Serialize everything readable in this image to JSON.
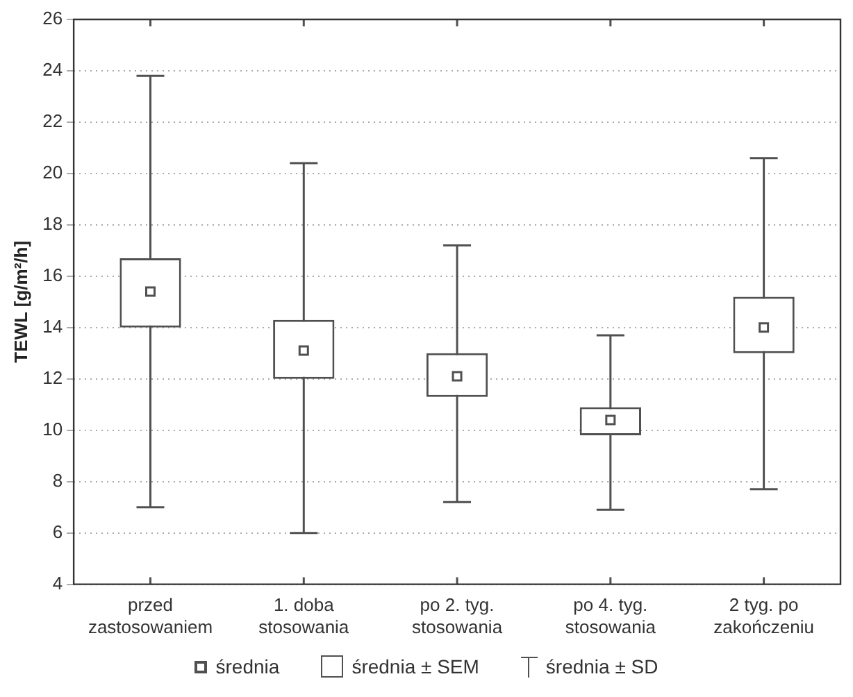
{
  "chart_data": {
    "type": "box",
    "ylabel": "TEWL [g/m²/h]",
    "categories": [
      "przed zastosowaniem",
      "1. doba stosowania",
      "po 2. tyg. stosowania",
      "po 4. tyg. stosowania",
      "2 tyg. po zakończeniu"
    ],
    "boxes": [
      {
        "low": 7.0,
        "q1": 14.0,
        "median": 15.4,
        "q3": 16.7,
        "high": 23.8
      },
      {
        "low": 6.0,
        "q1": 12.0,
        "median": 13.1,
        "q3": 14.3,
        "high": 20.4
      },
      {
        "low": 7.2,
        "q1": 11.3,
        "median": 12.1,
        "q3": 13.0,
        "high": 17.2
      },
      {
        "low": 6.9,
        "q1": 9.8,
        "median": 10.4,
        "q3": 10.9,
        "high": 13.7
      },
      {
        "low": 7.7,
        "q1": 13.0,
        "median": 14.0,
        "q3": 15.2,
        "high": 20.6
      }
    ],
    "color": "#505050",
    "ylim": [
      4,
      26
    ],
    "yticks": [
      4,
      6,
      8,
      10,
      12,
      14,
      16,
      18,
      20,
      22,
      24,
      26
    ],
    "grid": "y",
    "annotations": [
      "średnia",
      "średnia ± SEM",
      "średnia ± SD"
    ]
  }
}
